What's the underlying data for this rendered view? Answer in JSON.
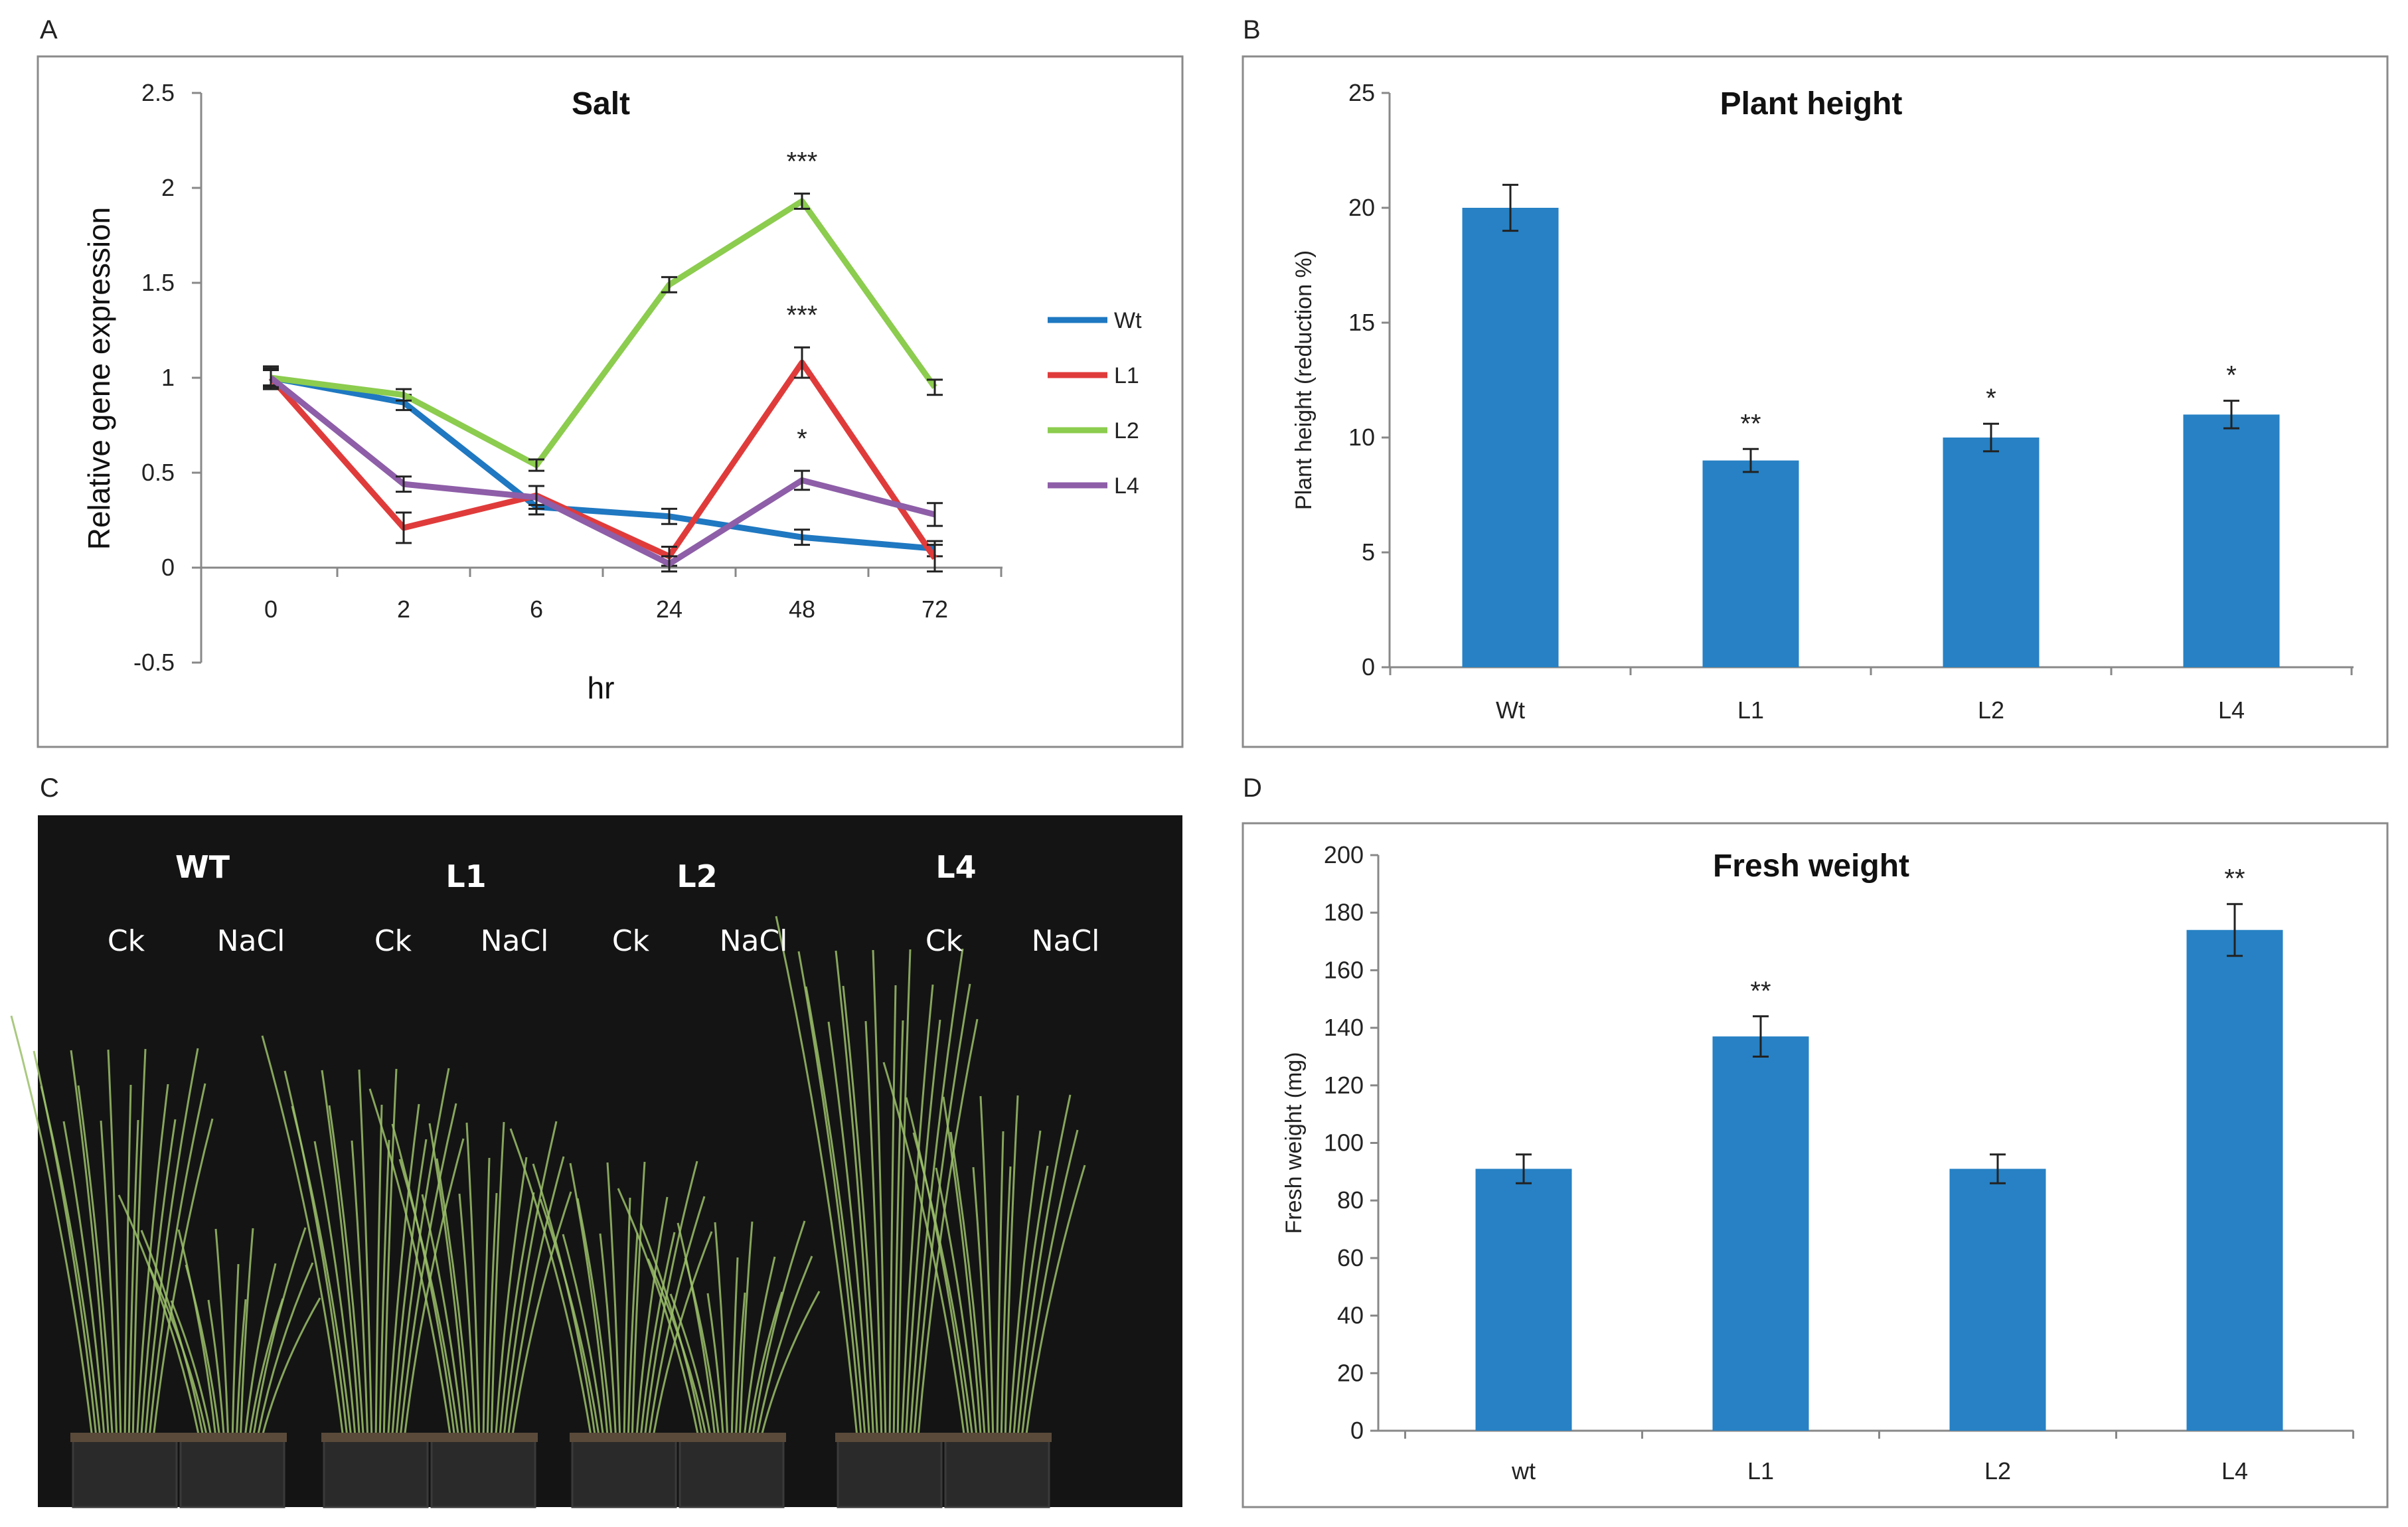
{
  "panel_labels": {
    "a": "A",
    "b": "B",
    "c": "C",
    "d": "D"
  },
  "colors": {
    "wt": "#1f78c1",
    "l1": "#e03b3b",
    "l2": "#8ccc4e",
    "l4": "#8e5ea8",
    "bar": "#2781c4",
    "axis": "#888888"
  },
  "chart_data": [
    {
      "id": "panel-a",
      "type": "line",
      "title": "Salt",
      "xlabel": "hr",
      "ylabel": "Relative gene expression",
      "categories": [
        "0",
        "2",
        "6",
        "24",
        "48",
        "72"
      ],
      "ylim": [
        -0.5,
        2.5
      ],
      "yticks": [
        "2.5",
        "2",
        "1.5",
        "1",
        "0.5",
        "0",
        "-0.5"
      ],
      "series": [
        {
          "name": "Wt",
          "values": [
            1.0,
            0.87,
            0.32,
            0.27,
            0.16,
            0.1
          ],
          "errors": [
            0.04,
            0.04,
            0.04,
            0.04,
            0.04,
            0.04
          ]
        },
        {
          "name": "L1",
          "values": [
            1.0,
            0.21,
            0.38,
            0.06,
            1.08,
            0.05
          ],
          "errors": [
            0.06,
            0.08,
            0.05,
            0.05,
            0.08,
            0.07
          ]
        },
        {
          "name": "L2",
          "values": [
            1.0,
            0.91,
            0.54,
            1.49,
            1.93,
            0.95
          ],
          "errors": [
            0.04,
            0.03,
            0.03,
            0.04,
            0.04,
            0.04
          ]
        },
        {
          "name": "L4",
          "values": [
            1.0,
            0.44,
            0.37,
            0.02,
            0.46,
            0.28
          ],
          "errors": [
            0.05,
            0.04,
            0.06,
            0.04,
            0.05,
            0.06
          ]
        }
      ],
      "annotations": [
        {
          "text": "***",
          "series": "L2",
          "x": "48"
        },
        {
          "text": "***",
          "series": "L1",
          "x": "48"
        },
        {
          "text": "*",
          "series": "L4",
          "x": "48"
        }
      ],
      "legend": "right"
    },
    {
      "id": "panel-b",
      "type": "bar",
      "title": "Plant height",
      "ylabel": "Plant height (reduction %)",
      "categories": [
        "Wt",
        "L1",
        "L2",
        "L4"
      ],
      "values": [
        20,
        9,
        10,
        11
      ],
      "errors": [
        1.0,
        0.5,
        0.6,
        0.6
      ],
      "labels": [
        "",
        "**",
        "*",
        "*"
      ],
      "ylim": [
        0,
        25
      ],
      "yticks": [
        "25",
        "20",
        "15",
        "10",
        "5",
        "0"
      ]
    },
    {
      "id": "panel-d",
      "type": "bar",
      "title": "Fresh weight",
      "ylabel": "Fresh weight (mg)",
      "categories": [
        "wt",
        "L1",
        "L2",
        "L4"
      ],
      "values": [
        91,
        137,
        91,
        174
      ],
      "errors": [
        5,
        7,
        5,
        9
      ],
      "labels": [
        "",
        "**",
        "",
        "**"
      ],
      "ylim": [
        0,
        200
      ],
      "yticks": [
        "200",
        "180",
        "160",
        "140",
        "120",
        "100",
        "80",
        "60",
        "40",
        "20",
        "0"
      ]
    }
  ],
  "photo": {
    "groups": [
      {
        "name": "WT",
        "treatments": [
          "Ck",
          "NaCl"
        ]
      },
      {
        "name": "L1",
        "treatments": [
          "Ck",
          "NaCl"
        ]
      },
      {
        "name": "L2",
        "treatments": [
          "Ck",
          "NaCl"
        ]
      },
      {
        "name": "L4",
        "treatments": [
          "Ck",
          "NaCl"
        ]
      }
    ]
  }
}
